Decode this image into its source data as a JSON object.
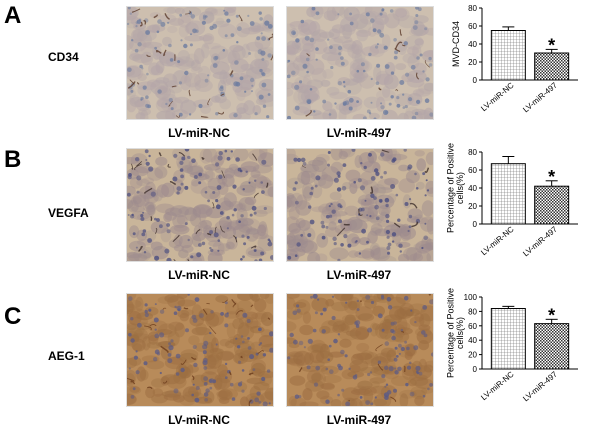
{
  "panels": [
    {
      "letter": "A",
      "stain": "CD34",
      "image_captions": [
        "LV-miR-NC",
        "LV-miR-497"
      ],
      "micro_colors": {
        "base": "#cdbfaf",
        "cells": "#b3a5a8",
        "nuclei": "#6e7da0",
        "vessels": "#5b3b2a"
      }
    },
    {
      "letter": "B",
      "stain": "VEGFA",
      "image_captions": [
        "LV-miR-NC",
        "LV-miR-497"
      ],
      "micro_colors": {
        "base": "#c9b59a",
        "cells": "#9d8b8e",
        "nuclei": "#4a4d80",
        "vessels": "#3d2e2a"
      }
    },
    {
      "letter": "C",
      "stain": "AEG-1",
      "image_captions": [
        "LV-miR-NC",
        "LV-miR-497"
      ],
      "micro_colors": {
        "base": "#b88b5a",
        "cells": "#9c6e42",
        "nuclei": "#5a5a86",
        "vessels": "#6a3b1c"
      }
    }
  ],
  "chart_data": [
    {
      "type": "bar",
      "categories": [
        "LV-miR-NC",
        "LV-miR-497"
      ],
      "values": [
        55,
        30
      ],
      "errors": [
        4,
        4
      ],
      "ylabel": "MVD-CD34",
      "ylim": [
        0,
        80
      ],
      "yticks": [
        0,
        20,
        40,
        60,
        80
      ],
      "significance": [
        "",
        "*"
      ]
    },
    {
      "type": "bar",
      "categories": [
        "LV-miR-NC",
        "LV-miR-497"
      ],
      "values": [
        67,
        42
      ],
      "errors": [
        8,
        6
      ],
      "ylabel": "Percentage of Positive cells(%)",
      "ylim": [
        0,
        80
      ],
      "yticks": [
        0,
        20,
        40,
        60,
        80
      ],
      "significance": [
        "",
        "*"
      ]
    },
    {
      "type": "bar",
      "categories": [
        "LV-miR-NC",
        "LV-miR-497"
      ],
      "values": [
        84,
        63
      ],
      "errors": [
        3,
        6
      ],
      "ylabel": "Percentage of Positive cells(%)",
      "ylim": [
        0,
        100
      ],
      "yticks": [
        0,
        20,
        40,
        60,
        80,
        100
      ],
      "significance": [
        "",
        "*"
      ]
    }
  ]
}
